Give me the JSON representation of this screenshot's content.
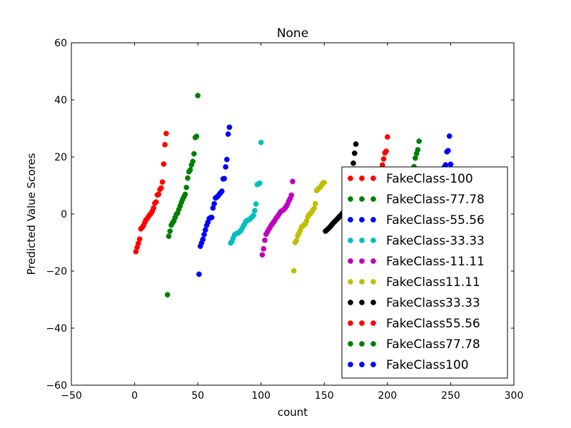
{
  "chart_data": {
    "type": "scatter",
    "title": "None",
    "xlabel": "count",
    "ylabel": "Predicted Value Scores",
    "xlim": [
      -50,
      300
    ],
    "ylim": [
      -60,
      60
    ],
    "xticks": [
      -50,
      0,
      50,
      100,
      150,
      200,
      250,
      300
    ],
    "yticks": [
      -60,
      -40,
      -20,
      0,
      20,
      40,
      60
    ],
    "xtick_labels": [
      "−50",
      "0",
      "50",
      "100",
      "150",
      "200",
      "250",
      "300"
    ],
    "ytick_labels": [
      "−60",
      "−40",
      "−20",
      "0",
      "20",
      "40",
      "60"
    ],
    "grid": false,
    "legend_position": "lower-right",
    "series": [
      {
        "name": "FakeClass-100",
        "color": "#ff0000",
        "x": [
          1,
          2,
          3,
          4,
          5,
          6,
          7,
          8,
          9,
          10,
          11,
          12,
          13,
          14,
          15,
          16,
          17,
          18,
          19,
          20,
          21,
          22,
          23,
          24,
          25
        ],
        "y": [
          -13.2,
          -11.7,
          -10.3,
          -8.8,
          -5.2,
          -4.7,
          -4.1,
          -3.0,
          -2.1,
          -1.6,
          -0.9,
          -0.3,
          0.2,
          1.0,
          2.1,
          3.8,
          4.2,
          6.7,
          6.9,
          8.6,
          9.1,
          11.2,
          17.5,
          24.3,
          28.2
        ]
      },
      {
        "name": "FakeClass-77.78",
        "color": "#008000",
        "x": [
          26,
          27,
          28,
          29,
          30,
          31,
          32,
          33,
          34,
          35,
          36,
          37,
          38,
          39,
          40,
          41,
          42,
          43,
          44,
          45,
          46,
          47,
          48,
          49,
          50
        ],
        "y": [
          -28.3,
          -7.8,
          -6.0,
          -3.9,
          -3.1,
          -2.5,
          -1.3,
          -0.1,
          0.3,
          1.6,
          2.8,
          4.0,
          5.1,
          6.0,
          6.9,
          9.3,
          12.6,
          14.8,
          15.5,
          17.2,
          18.4,
          21.1,
          26.8,
          27.2,
          41.5
        ]
      },
      {
        "name": "FakeClass-55.56",
        "color": "#0000ff",
        "x": [
          51,
          52,
          53,
          54,
          55,
          56,
          57,
          58,
          59,
          60,
          61,
          62,
          63,
          64,
          65,
          66,
          67,
          68,
          69,
          70,
          71,
          72,
          73,
          74,
          75
        ],
        "y": [
          -21.1,
          -11.3,
          -10.1,
          -8.9,
          -7.2,
          -5.6,
          -4.0,
          -2.9,
          -1.6,
          -1.3,
          -1.2,
          2.1,
          3.6,
          5.6,
          5.9,
          6.3,
          6.9,
          7.4,
          8.0,
          12.3,
          12.4,
          16.5,
          19.1,
          28.0,
          30.4
        ]
      },
      {
        "name": "FakeClass-33.33",
        "color": "#00bfbf",
        "x": [
          76,
          77,
          78,
          79,
          80,
          81,
          82,
          83,
          84,
          85,
          86,
          87,
          88,
          89,
          90,
          91,
          92,
          93,
          94,
          95,
          96,
          97,
          98,
          99,
          100
        ],
        "y": [
          -10.2,
          -9.6,
          -8.4,
          -7.3,
          -7.0,
          -6.8,
          -6.6,
          -6.2,
          -5.9,
          -5.1,
          -4.2,
          -3.5,
          -2.6,
          -2.3,
          -2.1,
          -1.9,
          -1.4,
          -1.0,
          -0.5,
          1.2,
          3.5,
          10.3,
          10.6,
          10.8,
          25.1
        ]
      },
      {
        "name": "FakeClass-11.11",
        "color": "#bf00bf",
        "x": [
          101,
          102,
          103,
          104,
          105,
          106,
          107,
          108,
          109,
          110,
          111,
          112,
          113,
          114,
          115,
          116,
          117,
          118,
          119,
          120,
          121,
          122,
          123,
          124,
          125
        ],
        "y": [
          -14.3,
          -12.2,
          -9.2,
          -7.1,
          -6.3,
          -5.5,
          -4.8,
          -4.0,
          -3.4,
          -2.8,
          -2.2,
          -1.4,
          -0.9,
          -0.2,
          0.5,
          1.0,
          1.2,
          1.6,
          2.0,
          2.7,
          3.5,
          4.6,
          5.4,
          6.6,
          11.4
        ]
      },
      {
        "name": "FakeClass11.11",
        "color": "#bfbf00",
        "x": [
          126,
          127,
          128,
          129,
          130,
          131,
          132,
          133,
          134,
          135,
          136,
          137,
          138,
          139,
          140,
          141,
          142,
          143,
          144,
          145,
          146,
          147,
          148,
          149,
          150
        ],
        "y": [
          -19.9,
          -10.0,
          -9.3,
          -7.6,
          -6.8,
          -5.8,
          -4.6,
          -4.3,
          -3.8,
          -3.5,
          -2.5,
          -1.0,
          -0.3,
          0.1,
          0.6,
          1.4,
          2.0,
          3.6,
          8.2,
          8.7,
          9.1,
          9.5,
          10.2,
          10.9,
          11.0
        ]
      },
      {
        "name": "FakeClass33.33",
        "color": "#000000",
        "x": [
          151,
          152,
          153,
          154,
          155,
          156,
          157,
          158,
          159,
          160,
          161,
          162,
          163,
          164,
          165,
          166,
          167,
          168,
          169,
          170,
          171,
          172,
          173,
          174,
          175
        ],
        "y": [
          -6.0,
          -5.6,
          -5.2,
          -4.8,
          -4.3,
          -3.8,
          -3.2,
          -2.8,
          -2.3,
          -1.9,
          -1.4,
          -0.9,
          -0.5,
          0.0,
          0.6,
          1.1,
          1.9,
          3.0,
          4.2,
          6.0,
          8.6,
          12.4,
          17.8,
          21.3,
          24.5
        ]
      },
      {
        "name": "FakeClass55.56",
        "color": "#ff0000",
        "x": [
          176,
          177,
          178,
          179,
          180,
          181,
          182,
          183,
          184,
          185,
          186,
          187,
          188,
          189,
          190,
          191,
          192,
          193,
          194,
          195,
          196,
          197,
          198,
          199,
          200
        ],
        "y": [
          -1.8,
          -1.2,
          -0.6,
          0.0,
          0.7,
          1.3,
          2.0,
          2.7,
          3.4,
          4.1,
          4.9,
          5.8,
          6.7,
          7.7,
          8.7,
          9.8,
          11.0,
          12.3,
          13.7,
          15.3,
          17.2,
          19.3,
          21.4,
          22.0,
          27.0
        ]
      },
      {
        "name": "FakeClass77.78",
        "color": "#008000",
        "x": [
          201,
          202,
          203,
          204,
          205,
          206,
          207,
          208,
          209,
          210,
          211,
          212,
          213,
          214,
          215,
          216,
          217,
          218,
          219,
          220,
          221,
          222,
          223,
          224,
          225
        ],
        "y": [
          -3.0,
          -2.5,
          -1.9,
          -1.3,
          -0.8,
          -0.2,
          0.4,
          1.0,
          1.7,
          2.4,
          3.1,
          3.9,
          4.7,
          5.6,
          6.5,
          7.6,
          8.8,
          10.2,
          11.8,
          13.9,
          16.6,
          19.6,
          21.2,
          22.5,
          25.5
        ]
      },
      {
        "name": "FakeClass100",
        "color": "#0000ff",
        "x": [
          226,
          227,
          228,
          229,
          230,
          231,
          232,
          233,
          234,
          235,
          236,
          237,
          238,
          239,
          240,
          241,
          242,
          243,
          244,
          245,
          246,
          247,
          248,
          249,
          250
        ],
        "y": [
          -2.9,
          -2.4,
          -1.8,
          -1.2,
          -0.6,
          0.0,
          0.6,
          1.3,
          2.0,
          2.8,
          3.6,
          4.5,
          5.5,
          6.5,
          7.7,
          9.0,
          10.5,
          12.2,
          14.2,
          16.4,
          17.2,
          21.8,
          22.2,
          27.3,
          17.4
        ]
      }
    ]
  }
}
